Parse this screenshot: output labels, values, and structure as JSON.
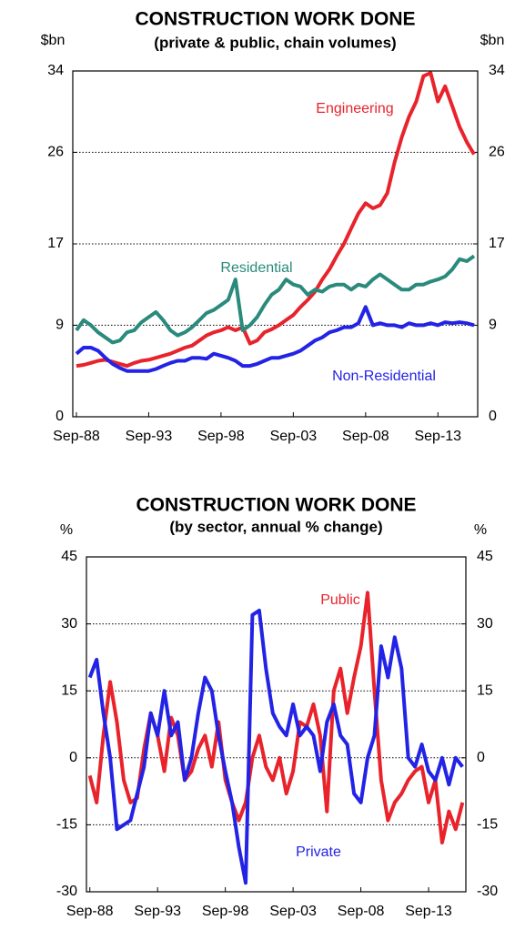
{
  "chart_data": [
    {
      "type": "line",
      "title": "CONSTRUCTION WORK DONE",
      "subtitle": "(private & public, chain volumes)",
      "y_label": "$bn",
      "categories": [
        "Sep-88",
        null,
        null,
        null,
        null,
        null,
        null,
        null,
        null,
        null,
        "Sep-93",
        null,
        null,
        null,
        null,
        null,
        null,
        null,
        null,
        null,
        "Sep-98",
        null,
        null,
        null,
        null,
        null,
        null,
        null,
        null,
        null,
        "Sep-03",
        null,
        null,
        null,
        null,
        null,
        null,
        null,
        null,
        null,
        "Sep-08",
        null,
        null,
        null,
        null,
        null,
        null,
        null,
        null,
        null,
        "Sep-13",
        null,
        null,
        null,
        null,
        null
      ],
      "ylim": [
        0,
        34
      ],
      "yticks": [
        0,
        9,
        17,
        26,
        34
      ],
      "grid": true,
      "series": [
        {
          "name": "Engineering",
          "color": "#e8232b",
          "values": [
            5.0,
            5.1,
            5.3,
            5.5,
            5.6,
            5.4,
            5.2,
            5.0,
            5.3,
            5.5,
            5.6,
            5.8,
            6.0,
            6.2,
            6.5,
            6.8,
            7.0,
            7.5,
            8.0,
            8.3,
            8.5,
            8.8,
            8.5,
            8.8,
            7.2,
            7.5,
            8.3,
            8.6,
            9.0,
            9.5,
            10.0,
            10.8,
            11.5,
            12.3,
            13.5,
            14.5,
            15.8,
            17.0,
            18.5,
            20.0,
            21.0,
            20.5,
            20.8,
            22.0,
            25.0,
            27.5,
            29.5,
            31.0,
            33.5,
            33.8,
            31.0,
            32.5,
            30.5,
            28.5,
            27.0,
            25.8
          ]
        },
        {
          "name": "Residential",
          "color": "#2a8a7c",
          "values": [
            8.5,
            9.5,
            9.0,
            8.3,
            7.8,
            7.3,
            7.5,
            8.3,
            8.5,
            9.3,
            9.8,
            10.3,
            9.5,
            8.5,
            8.0,
            8.3,
            8.8,
            9.5,
            10.2,
            10.5,
            11.0,
            11.5,
            13.5,
            8.5,
            9.0,
            9.8,
            11.0,
            12.0,
            12.5,
            13.5,
            13.0,
            12.8,
            12.0,
            12.5,
            12.3,
            12.8,
            13.0,
            13.0,
            12.5,
            13.0,
            12.8,
            13.5,
            14.0,
            13.5,
            13.0,
            12.5,
            12.5,
            13.0,
            13.0,
            13.3,
            13.5,
            13.8,
            14.5,
            15.5,
            15.3,
            15.8
          ]
        },
        {
          "name": "Non-Residential",
          "color": "#2323e6",
          "values": [
            6.2,
            6.8,
            6.8,
            6.5,
            5.8,
            5.2,
            4.8,
            4.5,
            4.5,
            4.5,
            4.5,
            4.7,
            5.0,
            5.3,
            5.5,
            5.5,
            5.8,
            5.8,
            5.7,
            6.2,
            6.0,
            5.8,
            5.5,
            5.0,
            5.0,
            5.2,
            5.5,
            5.8,
            5.8,
            6.0,
            6.2,
            6.5,
            7.0,
            7.5,
            7.8,
            8.3,
            8.5,
            8.8,
            8.8,
            9.2,
            10.8,
            9.0,
            9.2,
            9.0,
            9.0,
            8.8,
            9.2,
            9.0,
            9.0,
            9.2,
            9.0,
            9.3,
            9.2,
            9.3,
            9.2,
            9.0
          ]
        }
      ]
    },
    {
      "type": "line",
      "title": "CONSTRUCTION WORK DONE",
      "subtitle": "(by sector, annual % change)",
      "y_label": "%",
      "categories": [
        "Sep-88",
        null,
        null,
        null,
        null,
        null,
        null,
        null,
        null,
        null,
        "Sep-93",
        null,
        null,
        null,
        null,
        null,
        null,
        null,
        null,
        null,
        "Sep-98",
        null,
        null,
        null,
        null,
        null,
        null,
        null,
        null,
        null,
        "Sep-03",
        null,
        null,
        null,
        null,
        null,
        null,
        null,
        null,
        null,
        "Sep-08",
        null,
        null,
        null,
        null,
        null,
        null,
        null,
        null,
        null,
        "Sep-13",
        null,
        null,
        null,
        null,
        null
      ],
      "ylim": [
        -30,
        45
      ],
      "yticks": [
        -30,
        -15,
        0,
        15,
        30,
        45
      ],
      "grid": true,
      "series": [
        {
          "name": "Public",
          "color": "#e8232b",
          "values": [
            -4,
            -10,
            5,
            17,
            8,
            -5,
            -10,
            -9,
            2,
            10,
            5,
            -3,
            9,
            5,
            -5,
            -3,
            2,
            5,
            -2,
            8,
            -5,
            -10,
            -14,
            -10,
            0,
            5,
            -2,
            -5,
            0,
            -8,
            -3,
            8,
            7,
            12,
            5,
            -12,
            15,
            20,
            10,
            18,
            25,
            37,
            15,
            -5,
            -14,
            -10,
            -8,
            -5,
            -3,
            -2,
            -10,
            -5,
            -19,
            -12,
            -16,
            -10
          ]
        },
        {
          "name": "Private",
          "color": "#2323e6",
          "values": [
            18,
            22,
            10,
            0,
            -16,
            -15,
            -14,
            -8,
            -2,
            10,
            5,
            15,
            5,
            8,
            -5,
            0,
            10,
            18,
            15,
            5,
            -3,
            -10,
            -20,
            -28,
            32,
            33,
            20,
            10,
            7,
            5,
            12,
            5,
            7,
            5,
            -3,
            8,
            12,
            5,
            3,
            -8,
            -10,
            0,
            5,
            25,
            18,
            27,
            20,
            0,
            -2,
            3,
            -3,
            -5,
            0,
            -6,
            0,
            -2
          ]
        }
      ]
    }
  ]
}
